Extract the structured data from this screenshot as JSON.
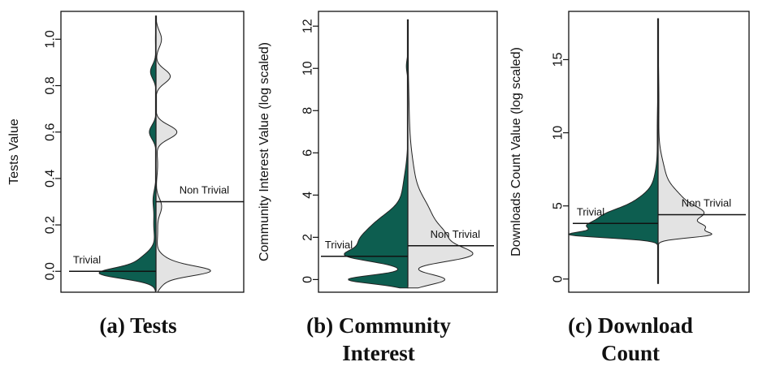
{
  "colors": {
    "trivial": "#0d5e50",
    "non_trivial": "#e3e3e3",
    "outline": "#222222"
  },
  "chart_data": [
    {
      "type": "violin",
      "subtype": "split",
      "caption_lines": [
        "(a) Tests"
      ],
      "ylabel": "Tests Value",
      "ylim": [
        -0.09,
        1.12
      ],
      "yticks": [
        0.0,
        0.2,
        0.4,
        0.6,
        0.8,
        1.0
      ],
      "ytick_labels": [
        "0.0",
        "0.2",
        "0.4",
        "0.6",
        "0.8",
        "1.0"
      ],
      "data_range": [
        -0.09,
        1.1
      ],
      "series": [
        {
          "name": "Trivial",
          "side": "left",
          "mean": 0.0,
          "label": "Trivial",
          "peaks": [
            [
              -0.01,
              0.8,
              0.022
            ],
            [
              0.02,
              0.25,
              0.04
            ],
            [
              0.05,
              0.12,
              0.04
            ],
            [
              0.2,
              0.04,
              0.05
            ],
            [
              0.31,
              0.05,
              0.04
            ],
            [
              0.6,
              0.12,
              0.03
            ],
            [
              0.86,
              0.1,
              0.03
            ],
            [
              1.0,
              0.01,
              0.05
            ]
          ]
        },
        {
          "name": "Non Trivial",
          "side": "right",
          "mean": 0.3,
          "label": "Non Trivial",
          "peaks": [
            [
              0.0,
              0.68,
              0.02
            ],
            [
              0.02,
              0.35,
              0.035
            ],
            [
              -0.05,
              0.1,
              0.025
            ],
            [
              0.28,
              0.1,
              0.035
            ],
            [
              0.17,
              0.03,
              0.05
            ],
            [
              0.6,
              0.38,
              0.03
            ],
            [
              0.46,
              0.03,
              0.05
            ],
            [
              0.84,
              0.26,
              0.03
            ],
            [
              1.0,
              0.1,
              0.035
            ]
          ]
        }
      ]
    },
    {
      "type": "violin",
      "subtype": "split",
      "caption_lines": [
        "(b) Community",
        "Interest"
      ],
      "ylabel": "Community Interest Value (log scaled)",
      "ylim": [
        -0.6,
        12.7
      ],
      "yticks": [
        0,
        2,
        4,
        6,
        8,
        10,
        12
      ],
      "ytick_labels": [
        "0",
        "2",
        "4",
        "6",
        "8",
        "10",
        "12"
      ],
      "data_range": [
        -0.4,
        12.3
      ],
      "series": [
        {
          "name": "Trivial",
          "side": "left",
          "mean": 1.1,
          "label": "Trivial",
          "peaks": [
            [
              0.0,
              0.8,
              0.2
            ],
            [
              1.1,
              0.45,
              0.25
            ],
            [
              1.6,
              0.55,
              0.55
            ],
            [
              2.6,
              0.35,
              0.6
            ],
            [
              4.0,
              0.07,
              1.0
            ],
            [
              10.1,
              0.02,
              0.3
            ]
          ]
        },
        {
          "name": "Non Trivial",
          "side": "right",
          "mean": 1.6,
          "label": "Non Trivial",
          "peaks": [
            [
              0.0,
              0.5,
              0.25
            ],
            [
              1.0,
              0.35,
              0.25
            ],
            [
              1.3,
              0.45,
              0.3
            ],
            [
              1.9,
              0.4,
              0.55
            ],
            [
              3.0,
              0.25,
              0.8
            ],
            [
              4.5,
              0.08,
              1.2
            ],
            [
              7.0,
              0.02,
              2.0
            ]
          ]
        }
      ]
    },
    {
      "type": "violin",
      "subtype": "split",
      "caption_lines": [
        "(c) Download",
        "Count"
      ],
      "ylabel": "Downloads Count Value (log scaled)",
      "ylim": [
        -0.9,
        18.3
      ],
      "yticks": [
        0,
        5,
        10,
        15
      ],
      "ytick_labels": [
        "0",
        "5",
        "10",
        "15"
      ],
      "data_range": [
        -0.3,
        17.8
      ],
      "series": [
        {
          "name": "Trivial",
          "side": "left",
          "mean": 3.8,
          "label": "Trivial",
          "peaks": [
            [
              3.0,
              0.8,
              0.2
            ],
            [
              3.5,
              0.6,
              0.35
            ],
            [
              4.2,
              0.5,
              0.5
            ],
            [
              5.0,
              0.25,
              0.7
            ],
            [
              6.3,
              0.05,
              1.0
            ],
            [
              10.0,
              0.01,
              2.0
            ]
          ]
        },
        {
          "name": "Non Trivial",
          "side": "right",
          "mean": 4.4,
          "label": "Non Trivial",
          "peaks": [
            [
              3.0,
              0.5,
              0.2
            ],
            [
              3.5,
              0.45,
              0.3
            ],
            [
              4.4,
              0.4,
              0.5
            ],
            [
              5.3,
              0.25,
              0.8
            ],
            [
              7.0,
              0.08,
              1.2
            ],
            [
              12.0,
              0.01,
              2.5
            ]
          ]
        }
      ]
    }
  ]
}
